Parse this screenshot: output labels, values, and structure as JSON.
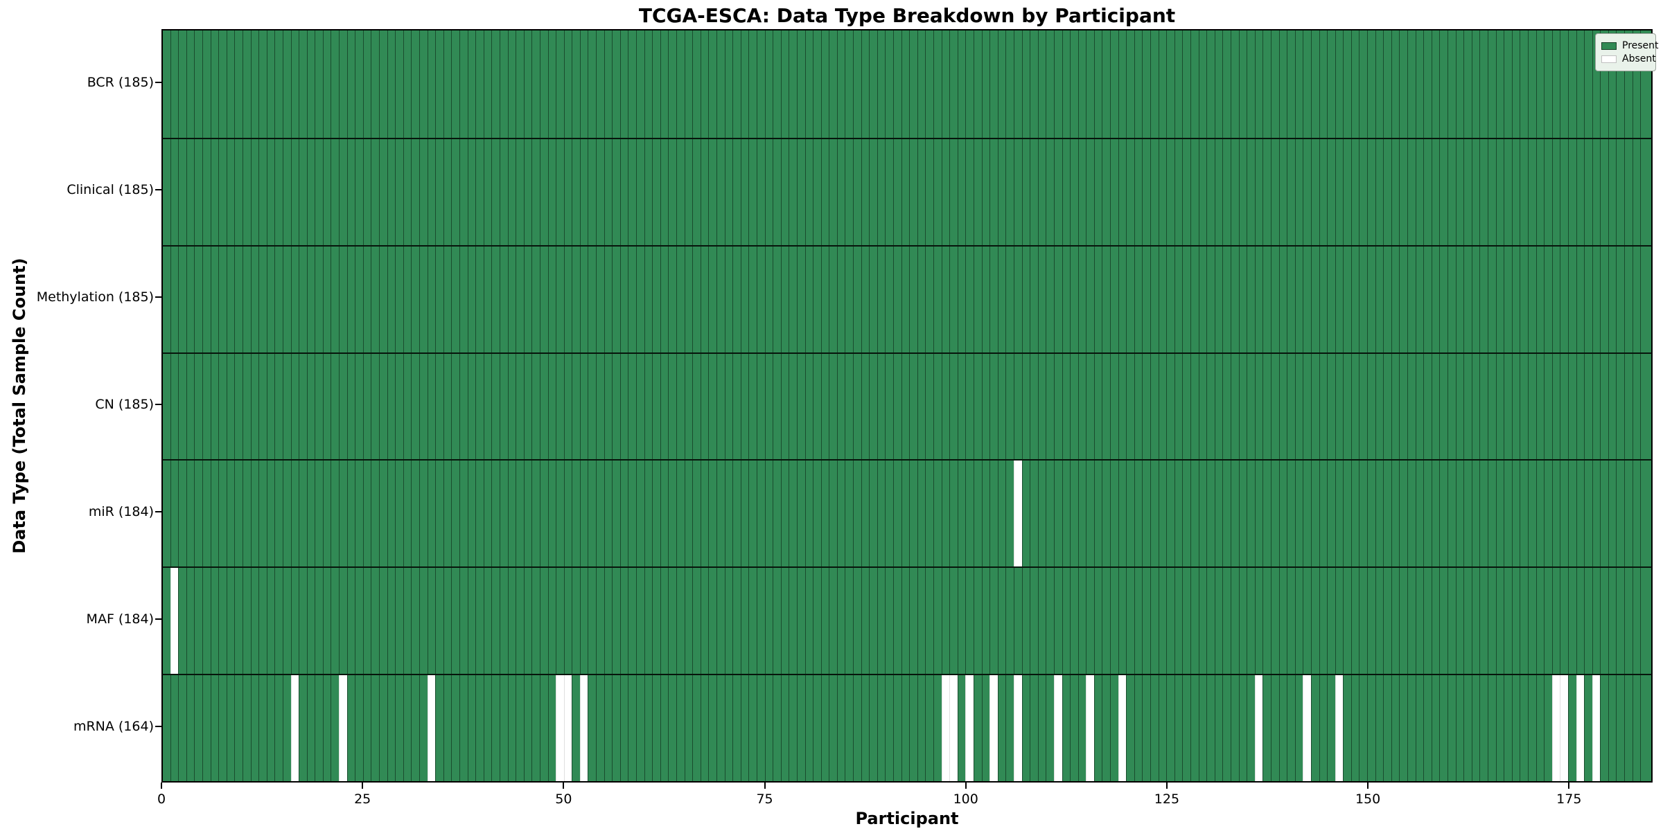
{
  "title": "TCGA-ESCA: Data Type Breakdown by Participant",
  "xlabel": "Participant",
  "ylabel": "Data Type (Total Sample Count)",
  "legend": {
    "present_label": "Present",
    "absent_label": "Absent"
  },
  "colors": {
    "present": "#318a55",
    "absent": "#ffffff",
    "bar_edge": "rgba(0,0,0,0.45)",
    "plot_border": "#000000",
    "legend_background": "#e9f2ea"
  },
  "chart_data": {
    "type": "heatmap",
    "title": "TCGA-ESCA: Data Type Breakdown by Participant",
    "xlabel": "Participant",
    "ylabel": "Data Type (Total Sample Count)",
    "legend": [
      "Present",
      "Absent"
    ],
    "legend_position": "upper right",
    "n_participants": 185,
    "x_ticks": [
      0,
      25,
      50,
      75,
      100,
      125,
      150,
      175
    ],
    "x_range": [
      0,
      185.4
    ],
    "rows": [
      {
        "label": "BCR (185)",
        "present_count": 185,
        "absent_participants": []
      },
      {
        "label": "Clinical (185)",
        "present_count": 185,
        "absent_participants": []
      },
      {
        "label": "Methylation (185)",
        "present_count": 185,
        "absent_participants": []
      },
      {
        "label": "CN (185)",
        "present_count": 185,
        "absent_participants": []
      },
      {
        "label": "miR (184)",
        "present_count": 184,
        "absent_participants": [
          107
        ]
      },
      {
        "label": "MAF (184)",
        "present_count": 184,
        "absent_participants": [
          2
        ]
      },
      {
        "label": "mRNA (164)",
        "present_count": 164,
        "absent_participants": [
          17,
          23,
          34,
          50,
          51,
          53,
          98,
          99,
          101,
          104,
          107,
          112,
          116,
          120,
          137,
          143,
          147,
          174,
          175,
          177,
          179
        ]
      }
    ]
  }
}
